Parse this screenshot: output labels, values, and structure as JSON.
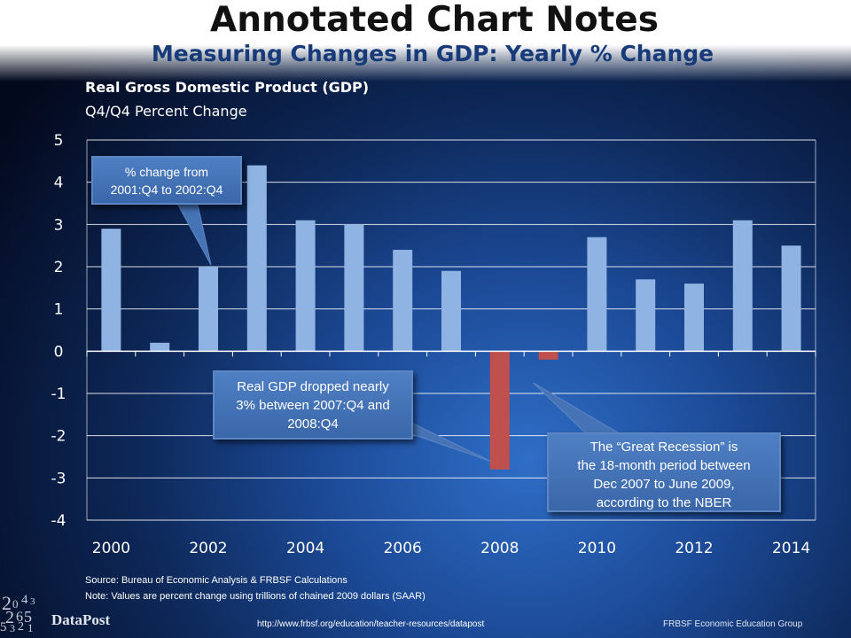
{
  "header": {
    "title": "Annotated Chart Notes",
    "subtitle": "Measuring Changes in GDP: Yearly % Change"
  },
  "chart_data": {
    "type": "bar",
    "title": "Real Gross Domestic Product (GDP)",
    "subtitle": "Q4/Q4 Percent Change",
    "categories": [
      2000,
      2001,
      2002,
      2003,
      2004,
      2005,
      2006,
      2007,
      2008,
      2009,
      2010,
      2011,
      2012,
      2013,
      2014
    ],
    "values": [
      2.9,
      0.2,
      2.0,
      4.4,
      3.1,
      3.0,
      2.4,
      1.9,
      -2.8,
      -0.2,
      2.7,
      1.7,
      1.6,
      3.1,
      2.5
    ],
    "x_tick_labels": [
      "2000",
      "2002",
      "2004",
      "2006",
      "2008",
      "2010",
      "2012",
      "2014"
    ],
    "y_tick_labels": [
      "5",
      "4",
      "3",
      "2",
      "1",
      "0",
      "-1",
      "-2",
      "-3",
      "-4"
    ],
    "ylim": [
      -4,
      5
    ],
    "grid": true,
    "colors": {
      "positive": "#8fb4e3",
      "negative": "#c0504d"
    },
    "xlabel": "",
    "ylabel": ""
  },
  "callouts": {
    "year_2002": "% change from\n2001:Q4 to 2002:Q4",
    "year_2008": "Real GDP dropped nearly\n3% between 2007:Q4 and\n2008:Q4",
    "recession": "The “Great Recession” is\nthe 18-month period between\nDec 2007 to June 2009,\naccording to the NBER"
  },
  "footer": {
    "source": "Source: Bureau of Economic Analysis & FRBSF Calculations",
    "note": "Note: Values are percent change using trillions of chained 2009  dollars (SAAR)",
    "brand": "DataPost",
    "url": "http://www.frbsf.org/education/teacher-resources/datapost",
    "org": "FRBSF Economic Education Group"
  }
}
